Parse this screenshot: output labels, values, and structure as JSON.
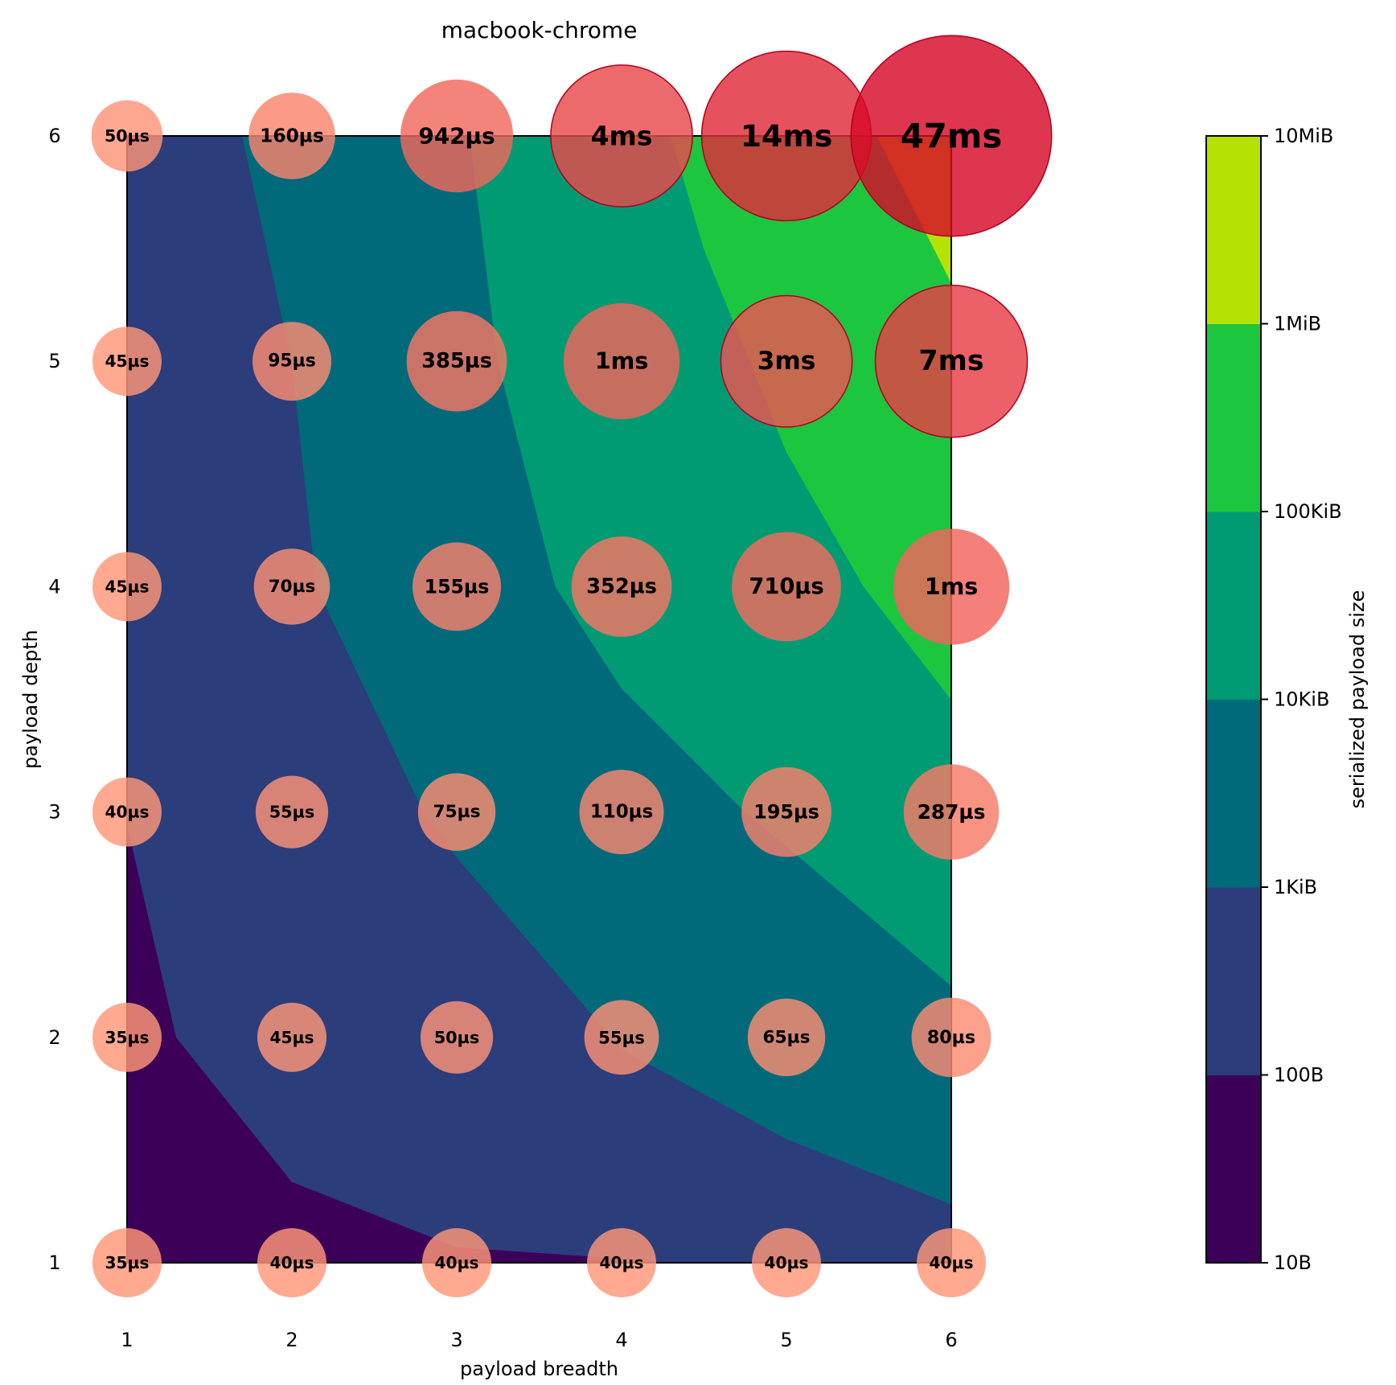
{
  "chart_data": {
    "type": "contour-bubble",
    "title": "macbook-chrome",
    "xlabel": "payload breadth",
    "ylabel": "payload depth",
    "x_ticks": [
      "1",
      "2",
      "3",
      "4",
      "5",
      "6"
    ],
    "y_ticks": [
      "1",
      "2",
      "3",
      "4",
      "5",
      "6"
    ],
    "xlim": [
      1,
      6
    ],
    "ylim": [
      1,
      6
    ],
    "colorbar": {
      "label": "serialized payload size",
      "scale": "log",
      "ticks": [
        "10B",
        "100B",
        "1KiB",
        "10KiB",
        "100KiB",
        "1MiB",
        "10MiB"
      ],
      "band_colors": [
        "#3d0058",
        "#2b3d7b",
        "#006a7b",
        "#009b72",
        "#1dc63f",
        "#b6e203"
      ]
    },
    "contour_levels": [
      {
        "level": "10B-100B",
        "color": "#3d0058",
        "polygon": [
          [
            1,
            1
          ],
          [
            1,
            2.95
          ],
          [
            1.3,
            2.0
          ],
          [
            2.0,
            1.36
          ],
          [
            3.0,
            1.07
          ],
          [
            4.0,
            1.02
          ],
          [
            4.0,
            1.0
          ]
        ]
      },
      {
        "level": "100B-1KiB",
        "color": "#2b3d7b",
        "polygon": [
          [
            1,
            2.95
          ],
          [
            1,
            6
          ],
          [
            1.7,
            6
          ],
          [
            2.0,
            5.0
          ],
          [
            2.15,
            4.0
          ],
          [
            2.8,
            3.0
          ],
          [
            3.0,
            2.8
          ],
          [
            4.0,
            1.95
          ],
          [
            5.0,
            1.55
          ],
          [
            6.0,
            1.26
          ],
          [
            6.0,
            1.0
          ],
          [
            4.0,
            1.0
          ],
          [
            4.0,
            1.02
          ],
          [
            3.0,
            1.07
          ],
          [
            2.0,
            1.36
          ],
          [
            1.3,
            2.0
          ]
        ]
      },
      {
        "level": "1KiB-10KiB",
        "color": "#006a7b",
        "polygon": [
          [
            1.7,
            6
          ],
          [
            3.08,
            6
          ],
          [
            3.25,
            5.0
          ],
          [
            3.6,
            4.0
          ],
          [
            4.0,
            3.55
          ],
          [
            4.75,
            3.0
          ],
          [
            5.0,
            2.85
          ],
          [
            6.0,
            2.23
          ],
          [
            6.0,
            1.26
          ],
          [
            5.0,
            1.55
          ],
          [
            4.0,
            1.95
          ],
          [
            3.0,
            2.8
          ],
          [
            2.8,
            3.0
          ],
          [
            2.15,
            4.0
          ],
          [
            2.0,
            5.0
          ]
        ]
      },
      {
        "level": "10KiB-100KiB",
        "color": "#009b72",
        "polygon": [
          [
            3.08,
            6
          ],
          [
            4.3,
            6
          ],
          [
            4.5,
            5.5
          ],
          [
            5.0,
            4.6
          ],
          [
            5.47,
            4.0
          ],
          [
            6.0,
            3.5
          ],
          [
            6.0,
            2.23
          ],
          [
            5.0,
            2.85
          ],
          [
            4.75,
            3.0
          ],
          [
            4.0,
            3.55
          ],
          [
            3.6,
            4.0
          ],
          [
            3.25,
            5.0
          ]
        ]
      },
      {
        "level": "100KiB-1MiB",
        "color": "#1dc63f",
        "polygon": [
          [
            4.3,
            6
          ],
          [
            5.55,
            6
          ],
          [
            6.0,
            5.35
          ],
          [
            6.0,
            3.5
          ],
          [
            5.47,
            4.0
          ],
          [
            5.0,
            4.6
          ],
          [
            4.5,
            5.5
          ]
        ]
      },
      {
        "level": "1MiB-10MiB",
        "color": "#b6e203",
        "polygon": [
          [
            5.55,
            6
          ],
          [
            6.0,
            6.0
          ],
          [
            6.0,
            5.35
          ]
        ]
      }
    ],
    "bubbles": [
      {
        "x": 1,
        "y": 1,
        "label": "35µs",
        "size": 1.0
      },
      {
        "x": 2,
        "y": 1,
        "label": "40µs",
        "size": 1.0
      },
      {
        "x": 3,
        "y": 1,
        "label": "40µs",
        "size": 1.0
      },
      {
        "x": 4,
        "y": 1,
        "label": "40µs",
        "size": 1.0
      },
      {
        "x": 5,
        "y": 1,
        "label": "40µs",
        "size": 1.0
      },
      {
        "x": 6,
        "y": 1,
        "label": "40µs",
        "size": 1.0
      },
      {
        "x": 1,
        "y": 2,
        "label": "35µs",
        "size": 1.0
      },
      {
        "x": 2,
        "y": 2,
        "label": "45µs",
        "size": 1.0
      },
      {
        "x": 3,
        "y": 2,
        "label": "50µs",
        "size": 1.05
      },
      {
        "x": 4,
        "y": 2,
        "label": "55µs",
        "size": 1.08
      },
      {
        "x": 5,
        "y": 2,
        "label": "65µs",
        "size": 1.12
      },
      {
        "x": 6,
        "y": 2,
        "label": "80µs",
        "size": 1.15
      },
      {
        "x": 1,
        "y": 3,
        "label": "40µs",
        "size": 1.0
      },
      {
        "x": 2,
        "y": 3,
        "label": "55µs",
        "size": 1.05
      },
      {
        "x": 3,
        "y": 3,
        "label": "75µs",
        "size": 1.12
      },
      {
        "x": 4,
        "y": 3,
        "label": "110µs",
        "size": 1.22
      },
      {
        "x": 5,
        "y": 3,
        "label": "195µs",
        "size": 1.3
      },
      {
        "x": 6,
        "y": 3,
        "label": "287µs",
        "size": 1.38
      },
      {
        "x": 1,
        "y": 4,
        "label": "45µs",
        "size": 1.0
      },
      {
        "x": 2,
        "y": 4,
        "label": "70µs",
        "size": 1.1
      },
      {
        "x": 3,
        "y": 4,
        "label": "155µs",
        "size": 1.28
      },
      {
        "x": 4,
        "y": 4,
        "label": "352µs",
        "size": 1.45
      },
      {
        "x": 5,
        "y": 4,
        "label": "710µs",
        "size": 1.58
      },
      {
        "x": 6,
        "y": 4,
        "label": "1ms",
        "size": 1.68
      },
      {
        "x": 1,
        "y": 5,
        "label": "45µs",
        "size": 1.0
      },
      {
        "x": 2,
        "y": 5,
        "label": "95µs",
        "size": 1.14
      },
      {
        "x": 3,
        "y": 5,
        "label": "385µs",
        "size": 1.45
      },
      {
        "x": 4,
        "y": 5,
        "label": "1ms",
        "size": 1.68
      },
      {
        "x": 5,
        "y": 5,
        "label": "3ms",
        "size": 1.9
      },
      {
        "x": 6,
        "y": 5,
        "label": "7ms",
        "size": 2.2
      },
      {
        "x": 1,
        "y": 6,
        "label": "50µs",
        "size": 1.03
      },
      {
        "x": 2,
        "y": 6,
        "label": "160µs",
        "size": 1.25
      },
      {
        "x": 3,
        "y": 6,
        "label": "942µs",
        "size": 1.63
      },
      {
        "x": 4,
        "y": 6,
        "label": "4ms",
        "size": 2.05
      },
      {
        "x": 5,
        "y": 6,
        "label": "14ms",
        "size": 2.45
      },
      {
        "x": 6,
        "y": 6,
        "label": "47ms",
        "size": 2.9
      }
    ],
    "grid": false
  }
}
